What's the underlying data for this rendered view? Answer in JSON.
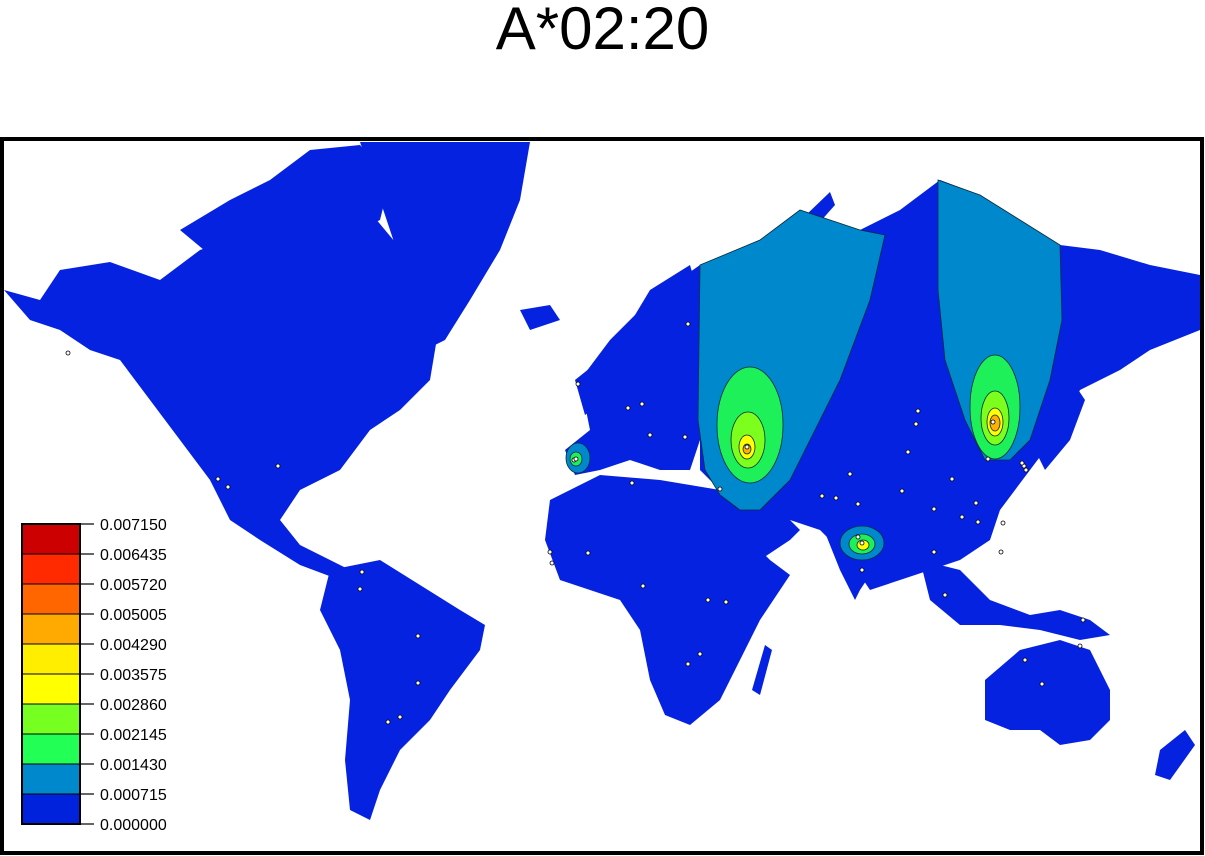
{
  "title": "A*02:20",
  "legend": {
    "labels": [
      "0.007150",
      "0.006435",
      "0.005720",
      "0.005005",
      "0.004290",
      "0.003575",
      "0.002860",
      "0.002145",
      "0.001430",
      "0.000715",
      "0.000000"
    ],
    "colors": [
      "#cc0000",
      "#ff2a00",
      "#ff6600",
      "#ffaa00",
      "#ffee00",
      "#ffff00",
      "#77ff22",
      "#22ff55",
      "#0088cc",
      "#0022dd"
    ]
  },
  "colors": {
    "ocean": "#ffffff",
    "land": "#0522e0",
    "level1": "#0088cc",
    "level2": "#1ef05a",
    "level3": "#7dff1e",
    "level4": "#ffff00",
    "level5": "#ffb000",
    "frame": "#000000"
  }
}
